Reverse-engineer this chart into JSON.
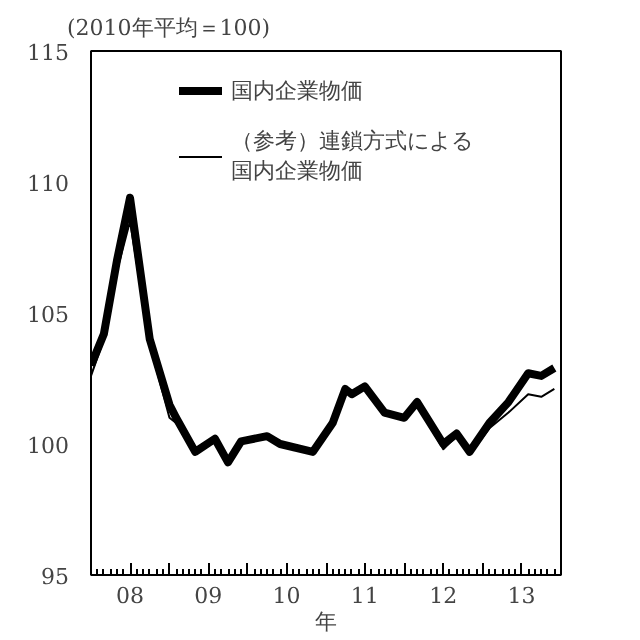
{
  "chart_data": {
    "type": "line",
    "ylabel": "(2010年平均＝100)",
    "xlabel": "年",
    "xlim": [
      "2008-01-01",
      "2014-01-01"
    ],
    "ylim": [
      95,
      115
    ],
    "yticks": [
      95,
      100,
      105,
      110,
      115
    ],
    "xticks": [
      {
        "value": "2008-01-01",
        "label": null
      },
      {
        "value": "2008-07-01",
        "label": "08"
      },
      {
        "value": "2009-01-01",
        "label": null
      },
      {
        "value": "2009-07-01",
        "label": "09"
      },
      {
        "value": "2010-01-01",
        "label": null
      },
      {
        "value": "2010-07-01",
        "label": "10"
      },
      {
        "value": "2011-01-01",
        "label": null
      },
      {
        "value": "2011-07-01",
        "label": "11"
      },
      {
        "value": "2012-01-01",
        "label": null
      },
      {
        "value": "2012-07-01",
        "label": "12"
      },
      {
        "value": "2013-01-01",
        "label": null
      },
      {
        "value": "2013-07-01",
        "label": "13"
      },
      {
        "value": "2014-01-01",
        "label": null
      }
    ],
    "grid": false,
    "legend": "top",
    "marker": "none",
    "line_style": "solid",
    "x": [
      "2008-01",
      "2008-03",
      "2008-05",
      "2008-07",
      "2008-10",
      "2009-01",
      "2009-02",
      "2009-05",
      "2009-08",
      "2009-10",
      "2009-12",
      "2010-04",
      "2010-06",
      "2010-11",
      "2011-02",
      "2011-04",
      "2011-05",
      "2011-07",
      "2011-10",
      "2012-01",
      "2012-03",
      "2012-07",
      "2012-09",
      "2012-11",
      "2013-02",
      "2013-05",
      "2013-08",
      "2013-10",
      "2013-12"
    ],
    "series": [
      {
        "name": "国内企業物価",
        "color": "#000000",
        "values": [
          103.0,
          104.2,
          107.0,
          109.4,
          104.0,
          101.5,
          101.0,
          99.7,
          100.2,
          99.3,
          100.1,
          100.3,
          100.0,
          99.7,
          100.8,
          102.1,
          101.9,
          102.2,
          101.2,
          101.0,
          101.6,
          100.0,
          100.4,
          99.7,
          100.8,
          101.6,
          102.7,
          102.6,
          102.9
        ]
      },
      {
        "name": "（参考）連鎖方式による国内企業物価",
        "color": "#000000",
        "values": [
          102.6,
          104.0,
          106.6,
          108.5,
          103.8,
          101.0,
          100.8,
          99.6,
          100.3,
          99.4,
          100.0,
          100.3,
          100.0,
          99.7,
          100.8,
          102.0,
          101.9,
          102.2,
          101.1,
          101.0,
          101.5,
          99.8,
          100.3,
          99.6,
          100.6,
          101.2,
          101.9,
          101.8,
          102.1
        ]
      }
    ]
  }
}
